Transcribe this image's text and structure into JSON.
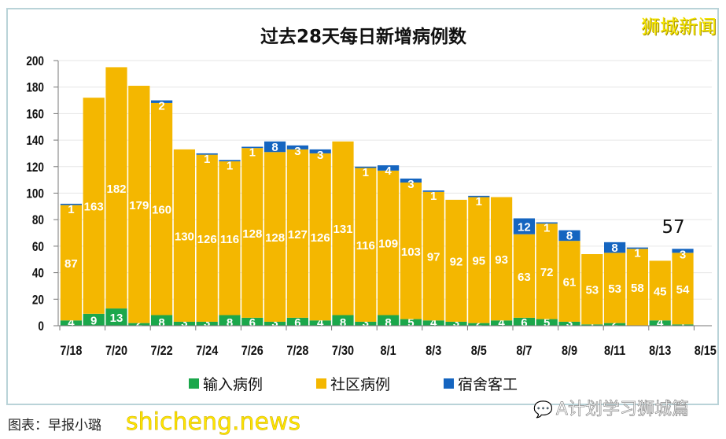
{
  "watermark_top": "狮城新闻",
  "credit": "图表：早报小璐",
  "watermark_bottom": "shicheng.news",
  "watermark_right": "A计划学习狮城篇",
  "chart_data": {
    "type": "bar",
    "stacked": true,
    "title": "过去28天每日新增病例数",
    "categories": [
      "7/18",
      "7/19",
      "7/20",
      "7/21",
      "7/22",
      "7/23",
      "7/24",
      "7/25",
      "7/26",
      "7/27",
      "7/28",
      "7/29",
      "7/30",
      "7/31",
      "8/1",
      "8/2",
      "8/3",
      "8/4",
      "8/5",
      "8/6",
      "8/7",
      "8/8",
      "8/9",
      "8/10",
      "8/11",
      "8/12",
      "8/13",
      "8/14"
    ],
    "x_tick_labels": [
      "7/18",
      "7/20",
      "7/22",
      "7/24",
      "7/26",
      "7/28",
      "7/30",
      "8/1",
      "8/3",
      "8/5",
      "8/7",
      "8/9",
      "8/11",
      "8/13",
      "8/15"
    ],
    "series": [
      {
        "name": "输入病例",
        "color": "#1ba74b",
        "values": [
          4,
          9,
          13,
          2,
          8,
          3,
          3,
          8,
          6,
          3,
          6,
          4,
          8,
          3,
          8,
          5,
          4,
          3,
          2,
          4,
          6,
          5,
          3,
          1,
          2,
          0,
          4,
          1
        ]
      },
      {
        "name": "社区病例",
        "color": "#f4b700",
        "values": [
          87,
          163,
          182,
          179,
          160,
          130,
          126,
          116,
          128,
          128,
          127,
          126,
          131,
          116,
          109,
          103,
          97,
          92,
          95,
          93,
          63,
          72,
          61,
          53,
          53,
          58,
          45,
          54
        ]
      },
      {
        "name": "宿舍客工",
        "color": "#1565c0",
        "values": [
          1,
          0,
          0,
          0,
          2,
          0,
          1,
          1,
          1,
          8,
          3,
          3,
          0,
          1,
          4,
          3,
          1,
          0,
          1,
          0,
          12,
          1,
          8,
          0,
          8,
          1,
          0,
          3
        ]
      }
    ],
    "ylim": [
      0,
      200
    ],
    "yticks": [
      0,
      20,
      40,
      60,
      80,
      100,
      120,
      140,
      160,
      180,
      200
    ],
    "grid": true,
    "legend": "bottom",
    "annotation": {
      "category": "8/14",
      "text": "57"
    }
  }
}
